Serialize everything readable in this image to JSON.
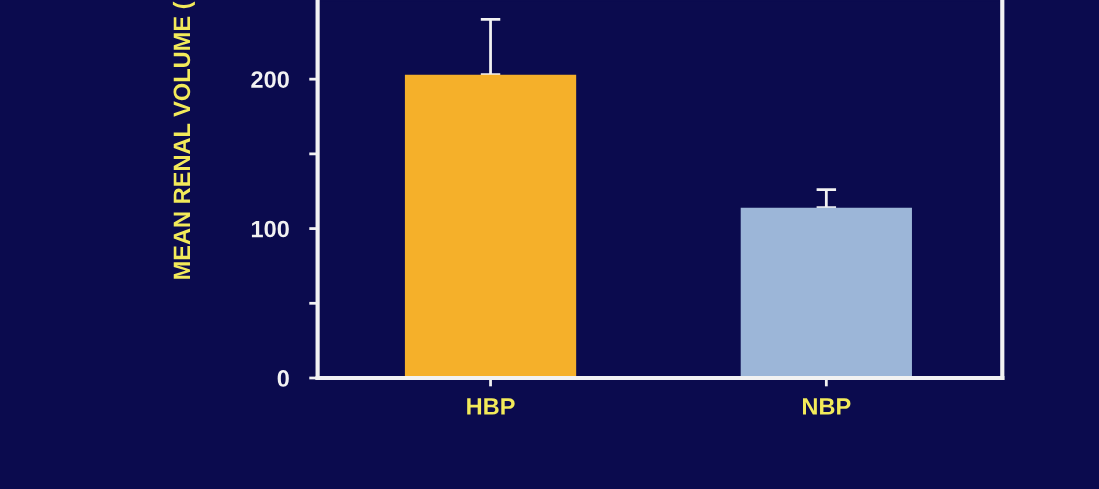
{
  "chart_data": {
    "type": "bar",
    "ylabel": "MEAN RENAL VOLUME (",
    "categories": [
      "HBP",
      "NBP"
    ],
    "values": [
      203,
      114
    ],
    "colors": [
      "#f5b02a",
      "#9cb6d8"
    ],
    "errors": [
      [
        203,
        240
      ],
      [
        114,
        126
      ]
    ],
    "ylim": [
      0,
      252
    ],
    "yticks": [
      0,
      {
        "value": 50,
        "label": null
      },
      100,
      {
        "value": 150,
        "label": null
      },
      200
    ],
    "grid": false
  }
}
